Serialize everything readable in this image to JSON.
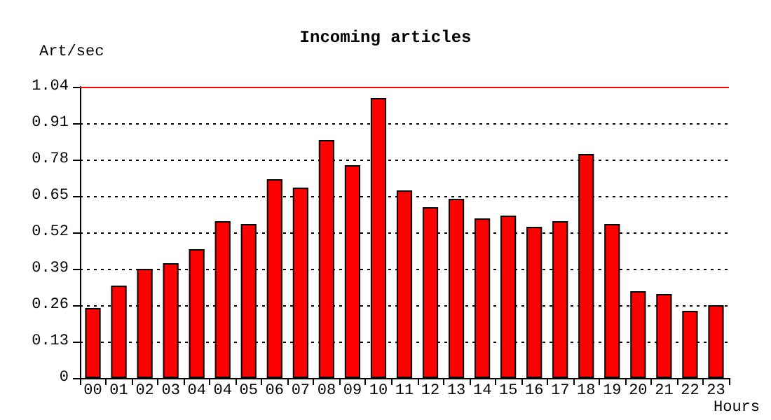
{
  "chart_data": {
    "type": "bar",
    "title": "Incoming articles",
    "xlabel": "Hours",
    "ylabel": "Art/sec",
    "categories": [
      "00",
      "01",
      "02",
      "03",
      "04",
      "04",
      "05",
      "06",
      "07",
      "08",
      "09",
      "10",
      "11",
      "12",
      "13",
      "14",
      "15",
      "16",
      "17",
      "18",
      "19",
      "20",
      "21",
      "22",
      "23"
    ],
    "values": [
      0.25,
      0.33,
      0.39,
      0.41,
      0.46,
      0.56,
      0.55,
      0.71,
      0.68,
      0.85,
      0.76,
      1.0,
      0.67,
      0.61,
      0.64,
      0.57,
      0.58,
      0.54,
      0.56,
      0.8,
      0.55,
      0.31,
      0.3,
      0.24,
      0.26
    ],
    "color": "#ff0000",
    "ylim": [
      0,
      1.04
    ],
    "yticks": [
      0,
      0.13,
      0.26,
      0.39,
      0.52,
      0.65,
      0.78,
      0.91,
      1.04
    ],
    "grid": "y",
    "ref_lines": [
      {
        "axis": "y",
        "value": 1.04,
        "color": "#ff0000"
      }
    ]
  }
}
